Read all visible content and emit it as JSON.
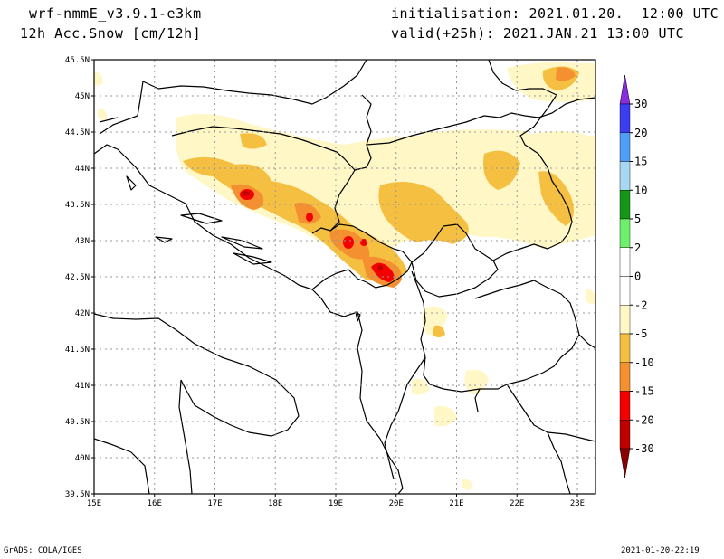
{
  "header": {
    "model": "wrf-nmmE_v3.9.1-e3km",
    "field": "12h Acc.Snow [cm/12h]",
    "init": "initialisation: 2021.01.20.  12:00 UTC",
    "valid": "valid(+25h): 2021.JAN.21 13:00 UTC"
  },
  "footer": {
    "left": "GrADS: COLA/IGES",
    "right": "2021-01-20-22:19"
  },
  "map": {
    "lon_range": [
      15,
      23.3
    ],
    "lat_range": [
      39.5,
      45.5
    ],
    "lon_ticks": [
      15,
      16,
      17,
      18,
      19,
      20,
      21,
      22,
      23
    ],
    "lon_labels": [
      "15E",
      "16E",
      "17E",
      "18E",
      "19E",
      "20E",
      "21E",
      "22E",
      "23E"
    ],
    "lat_ticks": [
      39.5,
      40,
      40.5,
      41,
      41.5,
      42,
      42.5,
      43,
      43.5,
      44,
      44.5,
      45,
      45.5
    ],
    "lat_labels": [
      "39.5N",
      "40N",
      "40.5N",
      "41N",
      "41.5N",
      "42N",
      "42.5N",
      "43N",
      "43.5N",
      "44N",
      "44.5N",
      "45N",
      "45.5N"
    ],
    "grid": "dotted"
  },
  "colorbar": {
    "labels": [
      "30",
      "20",
      "15",
      "10",
      "5",
      "2",
      "0",
      "-2",
      "-5",
      "-10",
      "-15",
      "-20",
      "-30"
    ],
    "colors": [
      "#8a2be2",
      "#3c3cf0",
      "#4f9df5",
      "#a8d6f5",
      "#169616",
      "#6ef06e",
      "#ffffff",
      "#ffffff",
      "#fff7c5",
      "#f5c042",
      "#f59030",
      "#f50000",
      "#c00000",
      "#8b0000"
    ]
  }
}
